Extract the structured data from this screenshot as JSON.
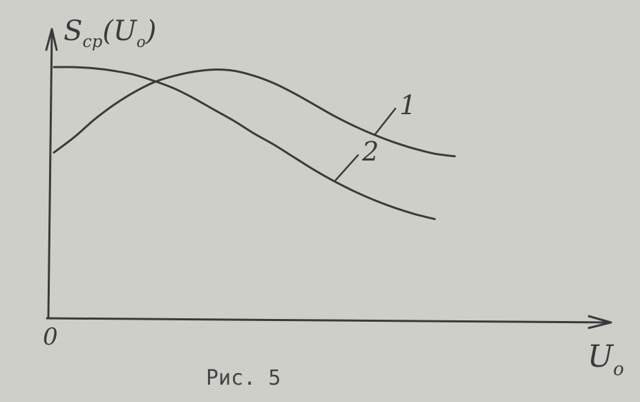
{
  "chart_data": {
    "type": "line",
    "y_label_main": "S",
    "y_label_sub": "cp",
    "y_label_arg_open": "(U",
    "y_label_arg_sub": "o",
    "y_label_arg_close": ")",
    "x_label_main": "U",
    "x_label_sub": "o",
    "origin_label": "0",
    "caption": "Рис. 5",
    "xlim": [
      0,
      10
    ],
    "ylim": [
      0,
      10
    ],
    "ticks_shown": false,
    "grid": false,
    "series": [
      {
        "name": "1",
        "x": [
          0,
          0.5,
          1,
          1.5,
          2,
          2.5,
          3,
          3.5,
          4,
          4.5,
          5,
          5.5,
          6,
          6.5,
          7,
          7.5,
          8,
          8.5,
          9,
          9.5,
          10
        ],
        "y": [
          6.6,
          7.2,
          7.9,
          8.5,
          9.0,
          9.4,
          9.65,
          9.82,
          9.9,
          9.85,
          9.65,
          9.35,
          8.95,
          8.5,
          8.05,
          7.65,
          7.3,
          7.0,
          6.75,
          6.55,
          6.45
        ]
      },
      {
        "name": "2",
        "x": [
          0,
          0.5,
          1,
          1.5,
          2,
          2.5,
          3,
          3.5,
          4,
          4.5,
          5,
          5.5,
          6,
          6.5,
          7,
          7.5,
          8,
          8.5,
          9,
          9.5
        ],
        "y": [
          10.0,
          10.0,
          9.95,
          9.85,
          9.7,
          9.45,
          9.15,
          8.75,
          8.3,
          7.85,
          7.35,
          6.9,
          6.4,
          5.9,
          5.45,
          5.05,
          4.7,
          4.4,
          4.15,
          3.95
        ]
      }
    ]
  }
}
